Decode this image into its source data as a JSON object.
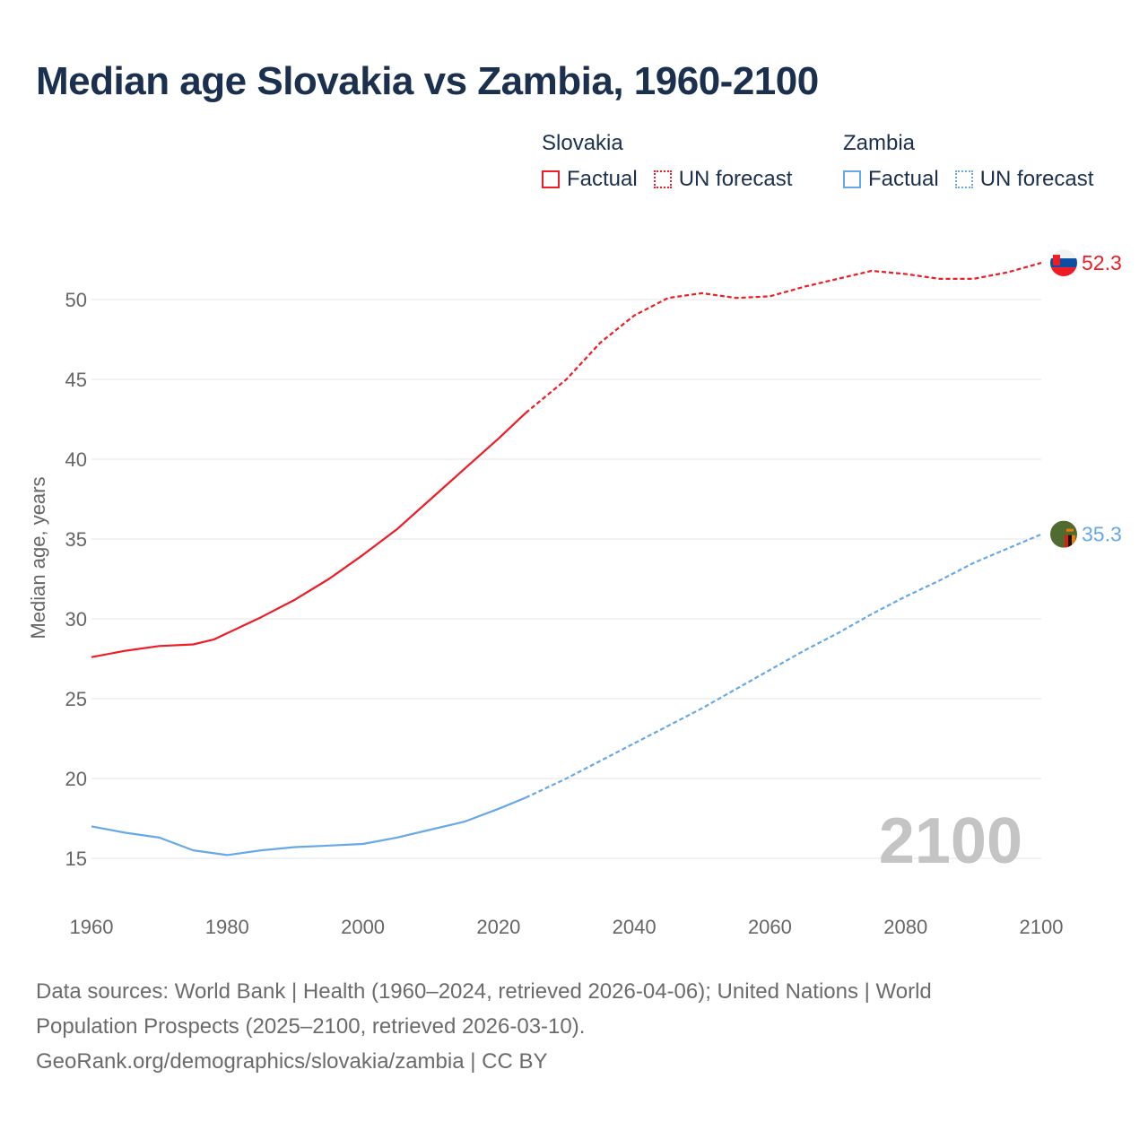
{
  "title": "Median age Slovakia vs Zambia, 1960-2100",
  "legend": [
    {
      "country": "Slovakia",
      "factual": "Factual",
      "forecast": "UN forecast",
      "color": "#ee1c25"
    },
    {
      "country": "Zambia",
      "factual": "Factual",
      "forecast": "UN forecast",
      "color": "#67a8e6"
    }
  ],
  "year_watermark": "2100",
  "footer": {
    "line1": "Data sources: World Bank | Health (1960–2024, retrieved 2026-04-06); United Nations | World",
    "line2": "Population Prospects (2025–2100, retrieved 2026-03-10).",
    "line3": "GeoRank.org/demographics/slovakia/zambia | CC BY"
  },
  "chart_data": {
    "type": "line",
    "title": "Median age Slovakia vs Zambia, 1960-2100",
    "xlabel": "",
    "ylabel": "Median age, years",
    "xlim": [
      1960,
      2100
    ],
    "ylim": [
      12.5,
      53
    ],
    "xticks": [
      1960,
      1980,
      2000,
      2020,
      2040,
      2060,
      2080,
      2100
    ],
    "yticks": [
      15,
      20,
      25,
      30,
      35,
      40,
      45,
      50
    ],
    "grid": true,
    "legend_position": "top-right",
    "series": [
      {
        "name": "Slovakia",
        "segment": "Factual",
        "color": "#ee1c25",
        "dashed": false,
        "x": [
          1960,
          1965,
          1970,
          1975,
          1978,
          1980,
          1985,
          1990,
          1995,
          2000,
          2005,
          2010,
          2015,
          2020,
          2024
        ],
        "y": [
          27.6,
          28.0,
          28.3,
          28.4,
          28.7,
          29.1,
          30.1,
          31.2,
          32.5,
          34.0,
          35.6,
          37.5,
          39.4,
          41.3,
          42.9
        ]
      },
      {
        "name": "Slovakia",
        "segment": "UN forecast",
        "color": "#ee1c25",
        "dashed": true,
        "x": [
          2024,
          2030,
          2035,
          2040,
          2045,
          2050,
          2055,
          2060,
          2065,
          2070,
          2075,
          2080,
          2085,
          2090,
          2095,
          2100
        ],
        "y": [
          42.9,
          45.0,
          47.3,
          49.0,
          50.1,
          50.4,
          50.1,
          50.2,
          50.8,
          51.3,
          51.8,
          51.6,
          51.3,
          51.3,
          51.7,
          52.3
        ],
        "end_label": "52.3"
      },
      {
        "name": "Zambia",
        "segment": "Factual",
        "color": "#67a8e6",
        "dashed": false,
        "x": [
          1960,
          1965,
          1970,
          1975,
          1980,
          1985,
          1990,
          1995,
          2000,
          2005,
          2010,
          2015,
          2020,
          2024
        ],
        "y": [
          17.0,
          16.6,
          16.3,
          15.5,
          15.2,
          15.5,
          15.7,
          15.8,
          15.9,
          16.3,
          16.8,
          17.3,
          18.1,
          18.8
        ]
      },
      {
        "name": "Zambia",
        "segment": "UN forecast",
        "color": "#67a8e6",
        "dashed": true,
        "x": [
          2024,
          2030,
          2035,
          2040,
          2045,
          2050,
          2055,
          2060,
          2065,
          2070,
          2075,
          2080,
          2085,
          2090,
          2095,
          2100
        ],
        "y": [
          18.8,
          20.0,
          21.1,
          22.2,
          23.3,
          24.4,
          25.6,
          26.8,
          28.0,
          29.1,
          30.3,
          31.4,
          32.4,
          33.5,
          34.4,
          35.3
        ],
        "end_label": "35.3"
      }
    ]
  }
}
